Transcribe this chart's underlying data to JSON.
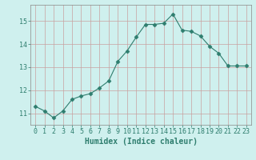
{
  "x": [
    0,
    1,
    2,
    3,
    4,
    5,
    6,
    7,
    8,
    9,
    10,
    11,
    12,
    13,
    14,
    15,
    16,
    17,
    18,
    19,
    20,
    21,
    22,
    23
  ],
  "y": [
    11.3,
    11.1,
    10.8,
    11.1,
    11.6,
    11.75,
    11.85,
    12.1,
    12.4,
    13.25,
    13.7,
    14.3,
    14.85,
    14.85,
    14.9,
    15.3,
    14.6,
    14.55,
    14.35,
    13.9,
    13.6,
    13.05,
    13.05,
    13.05
  ],
  "line_color": "#2e7d6e",
  "marker": "D",
  "marker_size": 2.5,
  "bg_color": "#cff0ee",
  "grid_color": "#c8a0a0",
  "xlabel": "Humidex (Indice chaleur)",
  "xlim": [
    -0.5,
    23.5
  ],
  "ylim": [
    10.5,
    15.7
  ],
  "yticks": [
    11,
    12,
    13,
    14,
    15
  ],
  "xtick_labels": [
    "0",
    "1",
    "2",
    "3",
    "4",
    "5",
    "6",
    "7",
    "8",
    "9",
    "10",
    "11",
    "12",
    "13",
    "14",
    "15",
    "16",
    "17",
    "18",
    "19",
    "20",
    "21",
    "22",
    "23"
  ],
  "xlabel_fontsize": 7,
  "tick_fontsize": 6,
  "tick_color": "#2e7d6e",
  "label_color": "#2e7d6e"
}
